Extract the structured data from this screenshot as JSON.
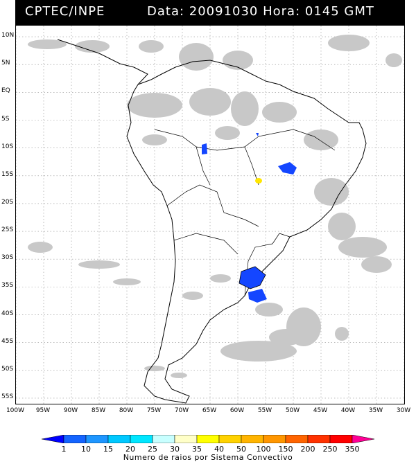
{
  "header": {
    "left": "CPTEC/INPE",
    "right": "Data: 20091030 Hora: 0145 GMT"
  },
  "axes": {
    "lat_labels": [
      "10N",
      "5N",
      "EQ",
      "5S",
      "10S",
      "15S",
      "20S",
      "25S",
      "30S",
      "35S",
      "40S",
      "45S",
      "50S",
      "55S"
    ],
    "lon_labels": [
      "100W",
      "95W",
      "90W",
      "85W",
      "80W",
      "75W",
      "70W",
      "65W",
      "60W",
      "55W",
      "50W",
      "45W",
      "40W",
      "35W",
      "30W"
    ]
  },
  "legend": {
    "title": "Numero de raios por Sistema Convectivo",
    "labels": [
      "1",
      "10",
      "15",
      "20",
      "25",
      "30",
      "35",
      "40",
      "50",
      "100",
      "150",
      "200",
      "250",
      "350"
    ],
    "colors": [
      "#0000ff",
      "#1464ff",
      "#1e96ff",
      "#00c8ff",
      "#00e6ff",
      "#c8ffff",
      "#ffffc8",
      "#ffff00",
      "#ffd200",
      "#ffb400",
      "#ff9600",
      "#ff6400",
      "#ff3200",
      "#ff0000",
      "#ff0096"
    ]
  },
  "colors": {
    "cloud": "#c8c8c8",
    "cloud_dark": "#aaaaaa",
    "coast": "#000000",
    "grid": "#808080",
    "convective_blue": "#1446ff",
    "convective_yellow": "#ffe600"
  }
}
